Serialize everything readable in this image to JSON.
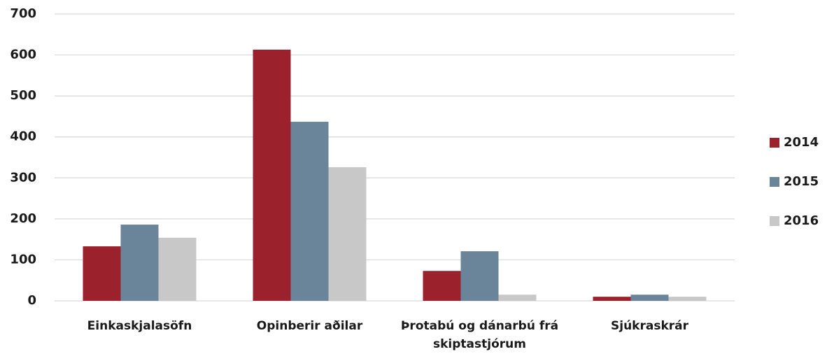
{
  "chart_data": {
    "type": "bar",
    "categories": [
      "Einkaskjalasöfn",
      "Opinberir aðilar",
      "Þrotabú og dánarbú frá skiptastjórum",
      "Sjúkraskrár"
    ],
    "series": [
      {
        "name": "2014",
        "color": "#9b222d",
        "values": [
          133,
          613,
          73,
          10
        ]
      },
      {
        "name": "2015",
        "color": "#6a8499",
        "values": [
          186,
          437,
          121,
          15
        ]
      },
      {
        "name": "2016",
        "color": "#c8c8c8",
        "values": [
          154,
          326,
          15,
          10
        ]
      }
    ],
    "ylim": [
      0,
      700
    ],
    "yticks": [
      0,
      100,
      200,
      300,
      400,
      500,
      600,
      700
    ],
    "grid": true,
    "legend": "right"
  }
}
